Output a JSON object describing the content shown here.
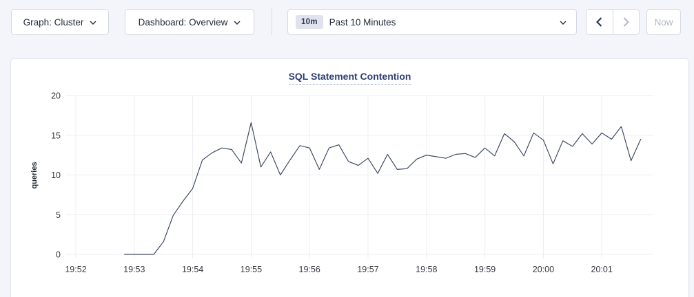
{
  "toolbar": {
    "graph_dropdown": {
      "label": "Graph: Cluster"
    },
    "dashboard_dropdown": {
      "label": "Dashboard: Overview"
    },
    "time_picker": {
      "badge": "10m",
      "label": "Past 10 Minutes"
    },
    "now_button": {
      "label": "Now"
    }
  },
  "colors": {
    "page_background": "#f4f5fa",
    "card_background": "#ffffff",
    "title": "#2e4172",
    "line": "#42507-invalid",
    "series_line": "#3f4b66",
    "gridline": "#ededf2",
    "tick_text": "#33373d",
    "disabled": "#b2b8c5"
  },
  "chart_data": {
    "type": "line",
    "title": "SQL Statement Contention",
    "ylabel": "queries",
    "ylim": [
      0,
      20
    ],
    "yticks": [
      0,
      5,
      10,
      15,
      20
    ],
    "grid": true,
    "legend": "none",
    "line_color": "#3f4b66",
    "xticks": [
      {
        "label": "19:52",
        "sec": 0
      },
      {
        "label": "19:53",
        "sec": 60
      },
      {
        "label": "19:54",
        "sec": 120
      },
      {
        "label": "19:55",
        "sec": 180
      },
      {
        "label": "19:56",
        "sec": 240
      },
      {
        "label": "19:57",
        "sec": 300
      },
      {
        "label": "19:58",
        "sec": 360
      },
      {
        "label": "19:59",
        "sec": 420
      },
      {
        "label": "20:00",
        "sec": 480
      },
      {
        "label": "20:01",
        "sec": 540
      }
    ],
    "x_note": "sec = seconds after 19:52:00",
    "series": [
      {
        "name": "SQL Statement Contention",
        "unit": "queries",
        "points_sec_value": [
          [
            50,
            0
          ],
          [
            60,
            0
          ],
          [
            70,
            0
          ],
          [
            80,
            0
          ],
          [
            90,
            1.6
          ],
          [
            100,
            4.9
          ],
          [
            110,
            6.7
          ],
          [
            120,
            8.3
          ],
          [
            130,
            11.9
          ],
          [
            140,
            12.8
          ],
          [
            150,
            13.4
          ],
          [
            160,
            13.2
          ],
          [
            170,
            11.5
          ],
          [
            180,
            16.6
          ],
          [
            190,
            11.0
          ],
          [
            200,
            12.9
          ],
          [
            210,
            10.0
          ],
          [
            220,
            11.9
          ],
          [
            230,
            13.7
          ],
          [
            240,
            13.4
          ],
          [
            250,
            10.7
          ],
          [
            260,
            13.4
          ],
          [
            270,
            13.8
          ],
          [
            280,
            11.7
          ],
          [
            290,
            11.2
          ],
          [
            300,
            12.1
          ],
          [
            310,
            10.2
          ],
          [
            320,
            12.6
          ],
          [
            330,
            10.7
          ],
          [
            340,
            10.8
          ],
          [
            350,
            12.0
          ],
          [
            360,
            12.5
          ],
          [
            370,
            12.3
          ],
          [
            380,
            12.1
          ],
          [
            390,
            12.6
          ],
          [
            400,
            12.7
          ],
          [
            410,
            12.2
          ],
          [
            420,
            13.4
          ],
          [
            430,
            12.4
          ],
          [
            440,
            15.2
          ],
          [
            450,
            14.2
          ],
          [
            460,
            12.4
          ],
          [
            470,
            15.3
          ],
          [
            480,
            14.4
          ],
          [
            490,
            11.4
          ],
          [
            500,
            14.3
          ],
          [
            510,
            13.6
          ],
          [
            520,
            15.2
          ],
          [
            530,
            13.9
          ],
          [
            540,
            15.3
          ],
          [
            550,
            14.5
          ],
          [
            560,
            16.1
          ],
          [
            570,
            11.8
          ],
          [
            580,
            14.5
          ]
        ]
      }
    ]
  }
}
